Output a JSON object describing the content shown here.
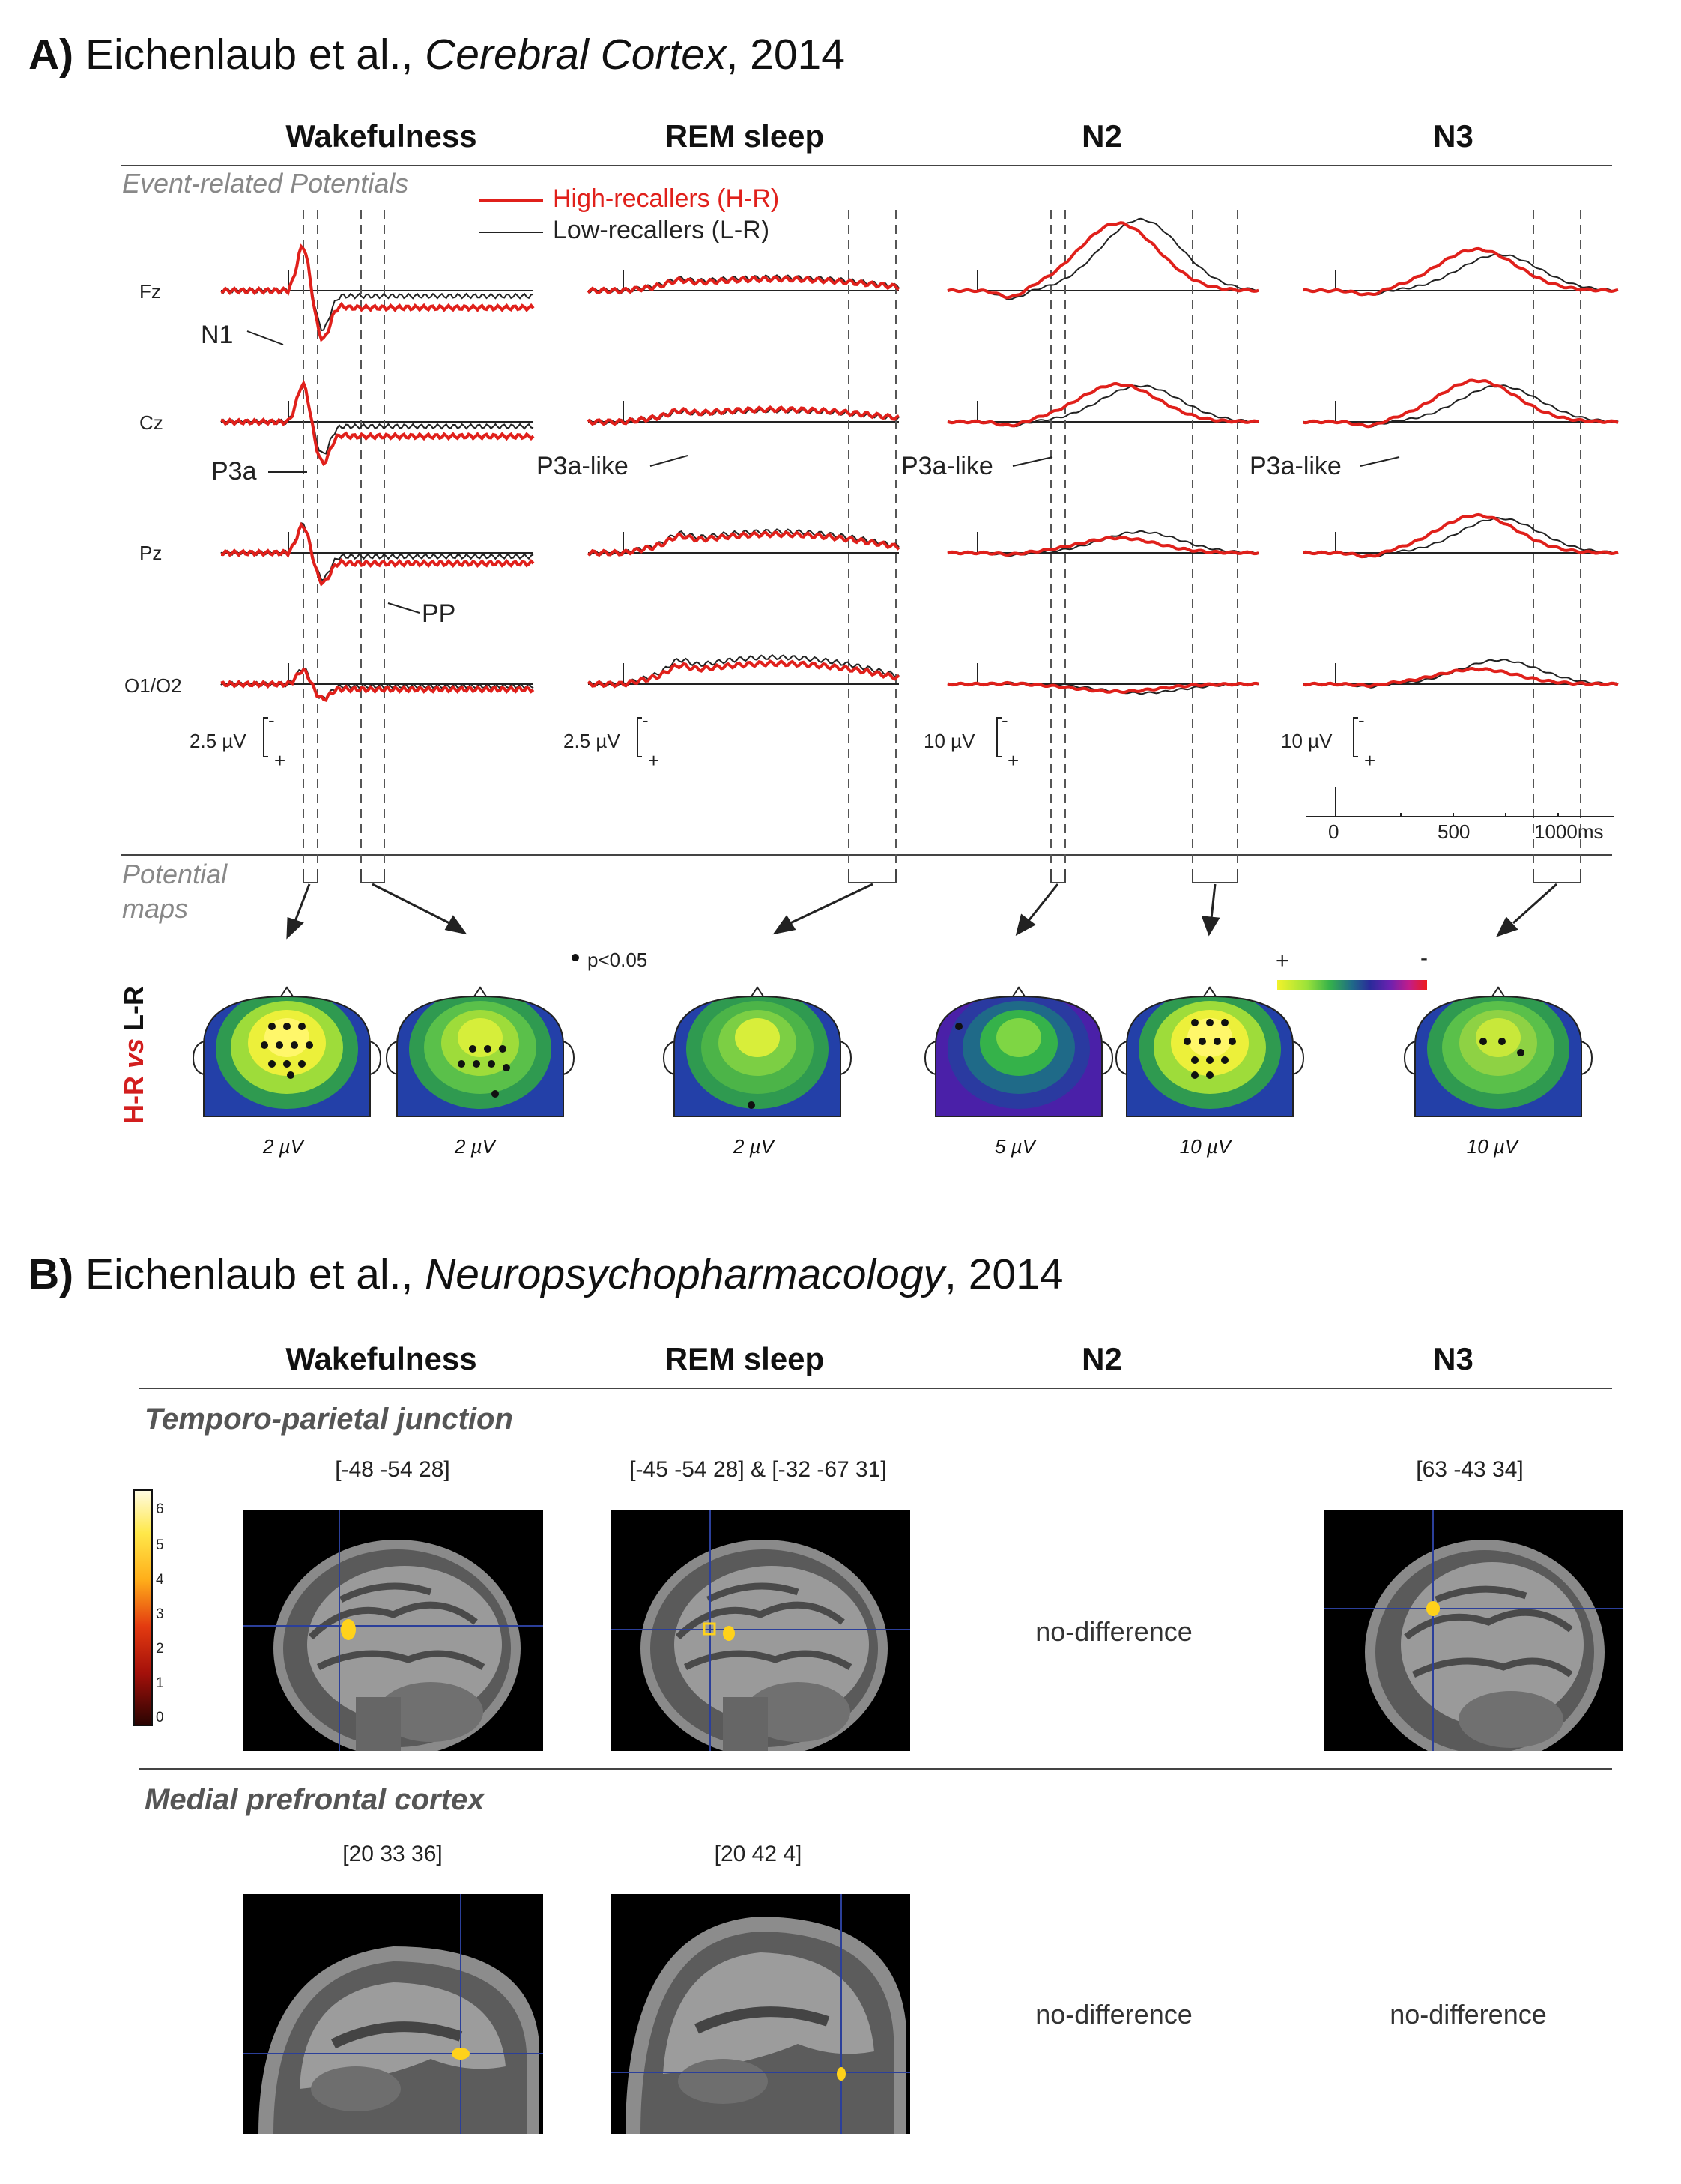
{
  "panel_a": {
    "label": "A)",
    "authors": "Eichenlaub et al., ",
    "journal": "Cerebral Cortex",
    "year": ", 2014",
    "columns": [
      "Wakefulness",
      "REM sleep",
      "N2",
      "N3"
    ],
    "section_erp": "Event-related Potentials",
    "section_maps_line1": "Potential",
    "section_maps_line2": "maps",
    "legend": {
      "hr": "High-recallers (H-R)",
      "lr": "Low-recallers (L-R)",
      "hr_color": "#e0201b",
      "lr_color": "#222222"
    },
    "channels": [
      "Fz",
      "Cz",
      "Pz",
      "O1/O2"
    ],
    "components": {
      "n1": "N1",
      "p3a": "P3a",
      "pp": "PP",
      "p3a_like": "P3a-like"
    },
    "scales": [
      "2.5 µV",
      "2.5 µV",
      "10 µV",
      "10 µV"
    ],
    "scale_signs": {
      "neg": "-",
      "pos": "+"
    },
    "time_axis": {
      "ticks": [
        "0",
        "500",
        "1000ms"
      ]
    },
    "pvalue": "p<0.05",
    "colorbar": {
      "pos": "+",
      "neg": "-"
    },
    "vertical_label": {
      "hr": "H-R",
      "vs": " vs ",
      "lr": "L-R"
    },
    "map_scales": [
      "2 µV",
      "2 µV",
      "2 µV",
      "5 µV",
      "10 µV",
      "10 µV"
    ]
  },
  "panel_b": {
    "label": "B)",
    "authors": "Eichenlaub et al., ",
    "journal": "Neuropsychopharmacology",
    "year": ", 2014",
    "columns": [
      "Wakefulness",
      "REM sleep",
      "N2",
      "N3"
    ],
    "region_tpj": "Temporo-parietal junction",
    "region_mpfc": "Medial prefrontal cortex",
    "colorbar_ticks": [
      "6",
      "5",
      "4",
      "3",
      "2",
      "1",
      "0"
    ],
    "tpj_coords": [
      "[-48 -54 28]",
      "[-45 -54 28] & [-32 -67 31]",
      "[63 -43 34]"
    ],
    "mpfc_coords": [
      "[20 33 36]",
      "[20 42 4]"
    ],
    "no_difference": "no-difference"
  }
}
